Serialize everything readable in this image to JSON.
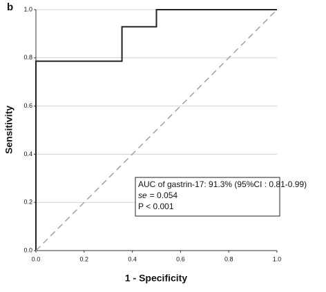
{
  "panel_label": "b",
  "chart_data": {
    "type": "line",
    "xlabel": "1 - Specificity",
    "ylabel": "Sensitivity",
    "xlim": [
      0,
      1
    ],
    "ylim": [
      0,
      1
    ],
    "xticks": [
      {
        "value": 0,
        "label": "0.0"
      },
      0.2,
      0.4,
      0.6,
      0.8,
      {
        "value": 1,
        "label": "1.0"
      }
    ],
    "yticks": [
      {
        "value": 0,
        "label": "0.0"
      },
      0.2,
      0.4,
      0.6,
      0.8,
      {
        "value": 1,
        "label": "1.0"
      }
    ],
    "grid": true,
    "series": [
      {
        "color": "#222222",
        "dashed": false,
        "x": [
          0,
          0,
          0.357,
          0.357,
          0.5,
          0.5,
          1
        ],
        "values": [
          0,
          0.786,
          0.786,
          0.929,
          0.929,
          1,
          1
        ]
      },
      {
        "color": "#a0a0a0",
        "dashed": true,
        "x": [
          0,
          1
        ],
        "values": [
          0,
          1
        ]
      }
    ],
    "annotation": {
      "line1": "AUC of gastrin-17: 91.3% (95%CI : 0.81-0.99)",
      "se_symbol": "se",
      "se_text": "= 0.054",
      "line3": "P < 0.001"
    }
  }
}
